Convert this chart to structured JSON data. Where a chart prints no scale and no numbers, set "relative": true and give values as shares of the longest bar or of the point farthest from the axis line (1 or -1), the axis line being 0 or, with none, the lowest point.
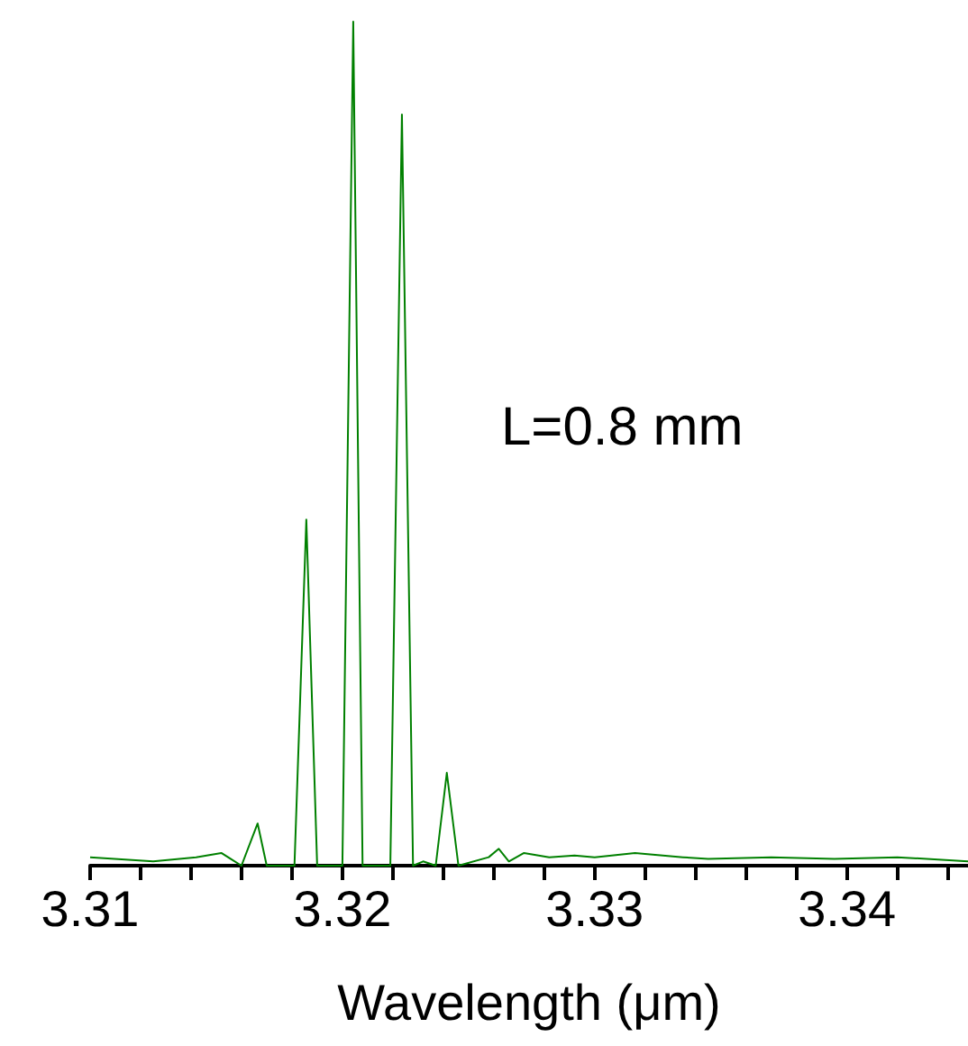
{
  "chart_data": {
    "type": "line",
    "relative": true,
    "xlabel": "Wavelength (μm)",
    "annotations": [
      "L=0.8 mm"
    ],
    "xlim": [
      3.31,
      3.3448
    ],
    "xticks": [
      3.31,
      {
        "value": 3.312,
        "label": null
      },
      {
        "value": 3.314,
        "label": null
      },
      {
        "value": 3.316,
        "label": null
      },
      {
        "value": 3.318,
        "label": null
      },
      3.32,
      {
        "value": 3.322,
        "label": null
      },
      {
        "value": 3.324,
        "label": null
      },
      {
        "value": 3.326,
        "label": null
      },
      {
        "value": 3.328,
        "label": null
      },
      3.33,
      {
        "value": 3.332,
        "label": null
      },
      {
        "value": 3.334,
        "label": null
      },
      {
        "value": 3.336,
        "label": null
      },
      {
        "value": 3.338,
        "label": null
      },
      3.34,
      {
        "value": 3.342,
        "label": null
      },
      {
        "value": 3.344,
        "label": null
      }
    ],
    "grid": false,
    "marker": "none",
    "line_style": "solid",
    "series": [
      {
        "color": "#008000",
        "x": [
          3.31,
          3.3125,
          3.3142,
          3.3152,
          3.316,
          3.31664,
          3.317,
          3.3181,
          3.31857,
          3.319,
          3.32,
          3.32043,
          3.3208,
          3.3219,
          3.32236,
          3.3228,
          3.3232,
          3.3237,
          3.32414,
          3.3246,
          3.3258,
          3.3262,
          3.3266,
          3.3272,
          3.3282,
          3.3292,
          3.33,
          3.3316,
          3.3335,
          3.3345,
          3.337,
          3.3395,
          3.342,
          3.3448
        ],
        "values": [
          0.01,
          0.005,
          0.01,
          0.015,
          0,
          0.05,
          0,
          0,
          0.41,
          0,
          0,
          1,
          0,
          0,
          0.89,
          0,
          0.005,
          0,
          0.11,
          0,
          0.01,
          0.02,
          0.005,
          0.015,
          0.01,
          0.012,
          0.01,
          0.015,
          0.01,
          0.008,
          0.01,
          0.008,
          0.01,
          0.005
        ]
      }
    ]
  }
}
